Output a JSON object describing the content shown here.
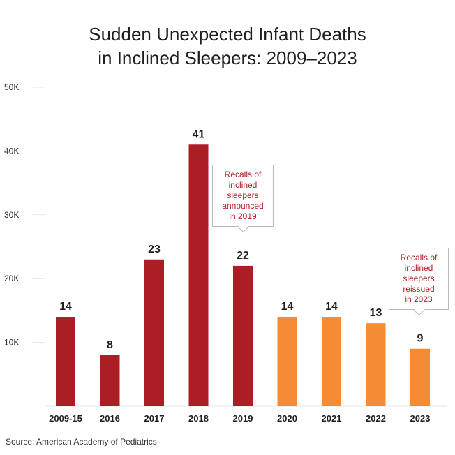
{
  "title_lines": [
    "Sudden Unexpected Infant Deaths",
    "in Inclined Sleepers: 2009–2023"
  ],
  "source": "Source: American Academy of Pediatrics",
  "colors": {
    "red": "#ac1e26",
    "orange": "#f58b35",
    "callout_text": "#b11f27",
    "grid": "#e6e6e6"
  },
  "callouts": {
    "c2019": [
      "Recalls of",
      "inclined",
      "sleepers",
      "announced",
      "in 2019"
    ],
    "c2023": [
      "Recalls of",
      "inclined",
      "sleepers",
      "reissued",
      "in 2023"
    ]
  },
  "chart_data": {
    "type": "bar",
    "title": "Sudden Unexpected Infant Deaths in Inclined Sleepers: 2009–2023",
    "categories": [
      "2009-15",
      "2016",
      "2017",
      "2018",
      "2019",
      "2020",
      "2021",
      "2022",
      "2023"
    ],
    "values": [
      14,
      8,
      23,
      41,
      22,
      14,
      14,
      13,
      9
    ],
    "bar_colors": [
      "red",
      "red",
      "red",
      "red",
      "red",
      "orange",
      "orange",
      "orange",
      "orange"
    ],
    "yticks": [
      "10K",
      "20K",
      "30K",
      "40K",
      "50K"
    ],
    "ylim": [
      0,
      50
    ],
    "xlabel": "",
    "ylabel": "",
    "grid": true,
    "legend": "none"
  }
}
